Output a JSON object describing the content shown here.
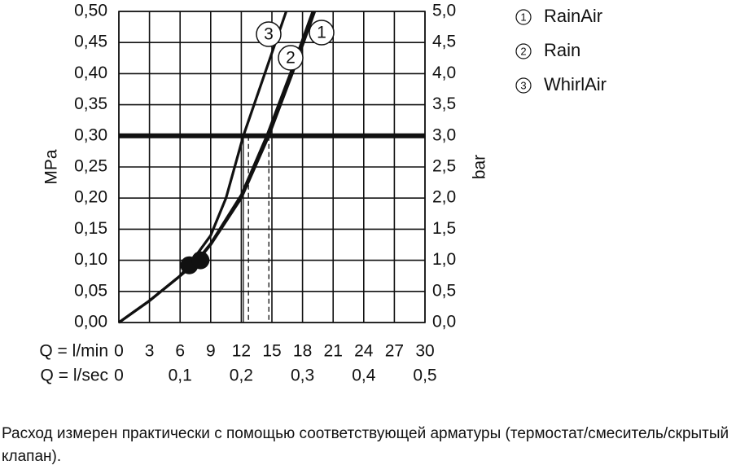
{
  "chart_data": {
    "type": "line",
    "xlim": [
      0,
      30
    ],
    "xticks": [
      0,
      3,
      6,
      9,
      12,
      15,
      18,
      21,
      24,
      27,
      30
    ],
    "x_label": "Q = l/min",
    "x2lim": [
      0,
      0.5
    ],
    "x2ticks": [
      0,
      {
        "value": 0.1,
        "label": "0,1"
      },
      {
        "value": 0.2,
        "label": "0,2"
      },
      {
        "value": 0.3,
        "label": "0,3"
      },
      {
        "value": 0.4,
        "label": "0,4"
      },
      {
        "value": 0.5,
        "label": "0,5"
      }
    ],
    "x2_label": "Q = l/sec",
    "ylim": [
      0,
      0.5
    ],
    "yticks": [
      {
        "value": 0,
        "label": "0,00"
      },
      {
        "value": 0.05,
        "label": "0,05"
      },
      {
        "value": 0.1,
        "label": "0,10"
      },
      {
        "value": 0.15,
        "label": "0,15"
      },
      {
        "value": 0.2,
        "label": "0,20"
      },
      {
        "value": 0.25,
        "label": "0,25"
      },
      {
        "value": 0.3,
        "label": "0,30"
      },
      {
        "value": 0.35,
        "label": "0,35"
      },
      {
        "value": 0.4,
        "label": "0,40"
      },
      {
        "value": 0.45,
        "label": "0,45"
      },
      {
        "value": 0.5,
        "label": "0,50"
      }
    ],
    "y_label": "MPa",
    "y2lim": [
      0,
      5
    ],
    "y2ticks": [
      {
        "value": 0,
        "label": "0,0"
      },
      {
        "value": 0.5,
        "label": "0,5"
      },
      {
        "value": 1,
        "label": "1,0"
      },
      {
        "value": 1.5,
        "label": "1,5"
      },
      {
        "value": 2,
        "label": "2,0"
      },
      {
        "value": 2.5,
        "label": "2,5"
      },
      {
        "value": 3,
        "label": "3,0"
      },
      {
        "value": 3.5,
        "label": "3,5"
      },
      {
        "value": 4,
        "label": "4,0"
      },
      {
        "value": 4.5,
        "label": "4,5"
      },
      {
        "value": 5,
        "label": "5,0"
      }
    ],
    "y2_label": "bar",
    "grid": true,
    "color": "#111111",
    "series": [
      {
        "name": "RainAir",
        "label": "1",
        "x": [
          0,
          3,
          6,
          7.5,
          9,
          12,
          14.7,
          17,
          19.2
        ],
        "values": [
          0,
          0.035,
          0.075,
          0.095,
          0.125,
          0.2,
          0.3,
          0.4,
          0.5
        ]
      },
      {
        "name": "Rain",
        "label": "2",
        "x": [
          0,
          3,
          6,
          7.5,
          9,
          12,
          14.5,
          16.8,
          19
        ],
        "values": [
          0,
          0.035,
          0.075,
          0.096,
          0.127,
          0.205,
          0.3,
          0.4,
          0.5
        ]
      },
      {
        "name": "WhirlAir",
        "label": "3",
        "x": [
          0,
          3,
          6,
          7,
          9,
          10.5,
          12.2,
          14.3,
          16.4
        ],
        "values": [
          0,
          0.035,
          0.075,
          0.095,
          0.14,
          0.2,
          0.3,
          0.4,
          0.5
        ]
      }
    ],
    "reference_y": 0.3,
    "reference_x": [
      12.2,
      12.7,
      14.7
    ],
    "points": {
      "x": [
        6.9,
        8.0
      ],
      "values": [
        0.092,
        0.1
      ]
    },
    "note": "Расход измерен практически с помощью соответствующей арматуры (термостат/смеситель/скрытый клапан)."
  }
}
